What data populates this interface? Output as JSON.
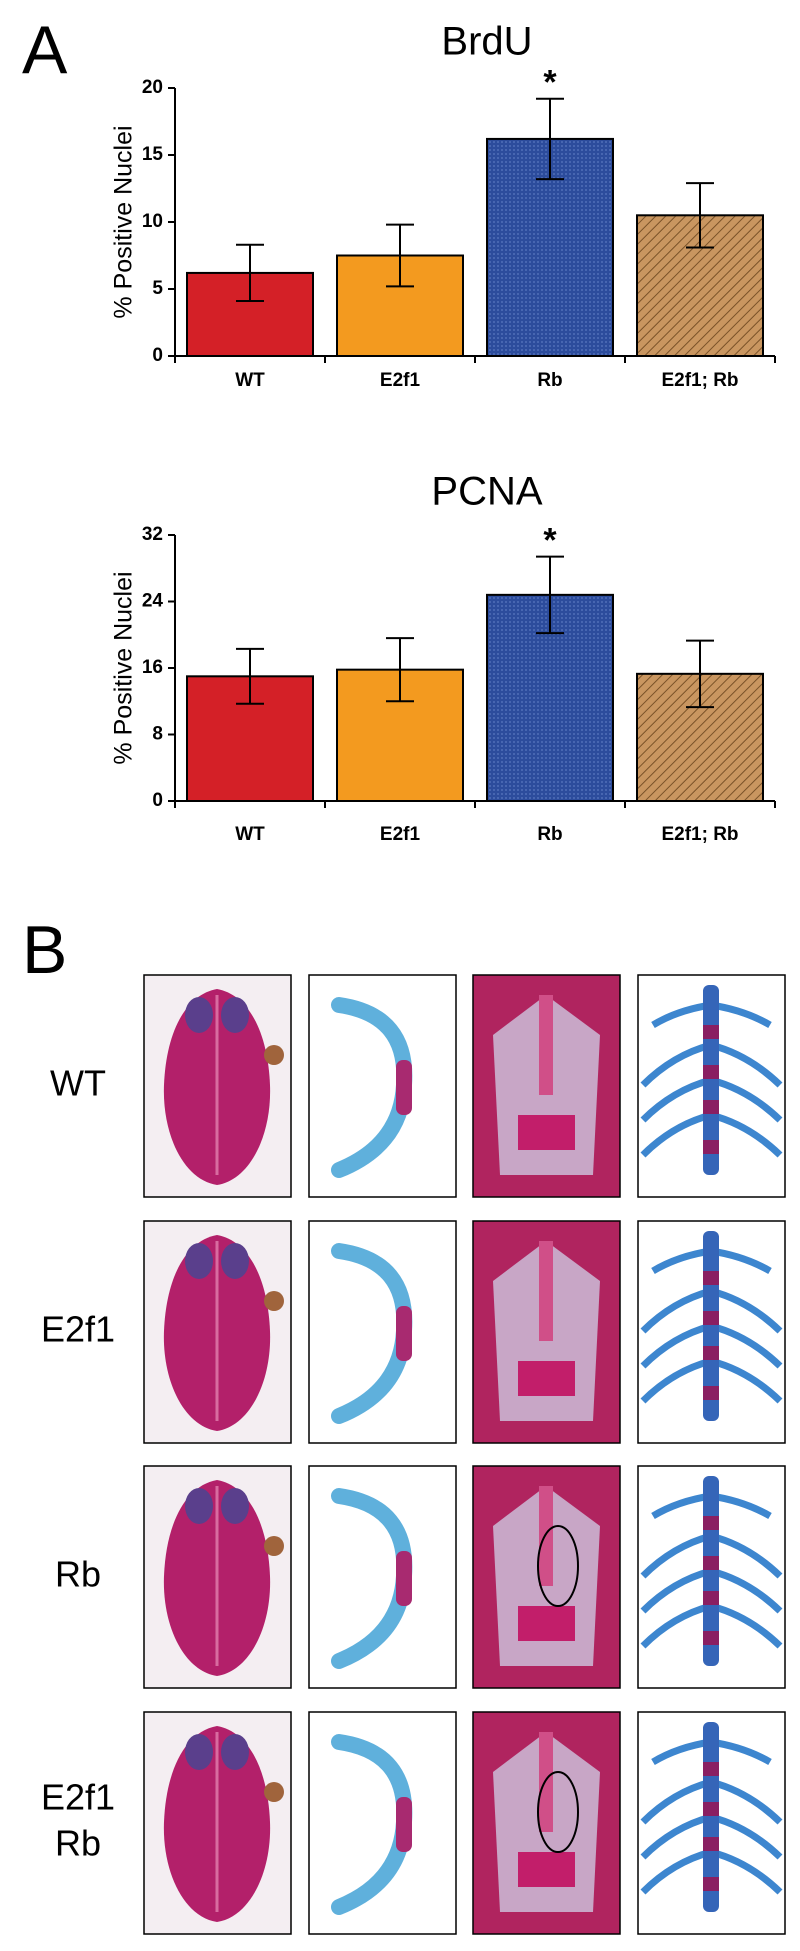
{
  "panel_a_label": "A",
  "chart_data": [
    {
      "type": "bar",
      "title": "BrdU",
      "y_label": "% Positive Nuclei",
      "categories": [
        "WT",
        "E2f1",
        "Rb",
        "E2f1; Rb"
      ],
      "values": [
        6.2,
        7.5,
        16.2,
        10.5
      ],
      "errors": [
        2.1,
        2.3,
        3.0,
        2.4
      ],
      "colors": [
        "#d42027",
        "#f39a1f",
        "#2c4c9c",
        "#c99660"
      ],
      "patterns": [
        "solid",
        "solid",
        "dots",
        "hatch"
      ],
      "annotations": [
        "*"
      ],
      "ylim": [
        0,
        20
      ],
      "yticks": [
        0,
        5,
        10,
        15,
        20
      ]
    },
    {
      "type": "bar",
      "title": "PCNA",
      "y_label": "% Positive Nuclei",
      "categories": [
        "WT",
        "E2f1",
        "Rb",
        "E2f1; Rb"
      ],
      "values": [
        15.0,
        15.8,
        24.8,
        15.3
      ],
      "errors": [
        3.3,
        3.8,
        4.6,
        4.0
      ],
      "colors": [
        "#d42027",
        "#f39a1f",
        "#2c4c9c",
        "#c99660"
      ],
      "patterns": [
        "solid",
        "solid",
        "dots",
        "hatch"
      ],
      "annotations": [
        "*"
      ],
      "ylim": [
        0,
        32
      ],
      "yticks": [
        0,
        8,
        16,
        24,
        32
      ]
    }
  ],
  "panel_b": {
    "label": "B",
    "rows": [
      [
        "WT"
      ],
      [
        "E2f1"
      ],
      [
        "Rb"
      ],
      [
        "E2f1",
        "Rb"
      ]
    ]
  }
}
